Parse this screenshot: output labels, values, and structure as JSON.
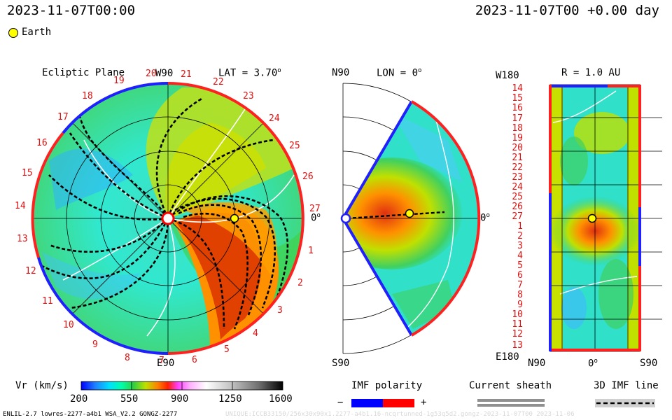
{
  "header": {
    "datetime_left": "2023-11-07T00:00",
    "datetime_right": "2023-11-07T00 +0.00 day"
  },
  "legend": {
    "earth_label": "Earth",
    "earth_color": "#ffff00"
  },
  "ecliptic_panel": {
    "title": "Ecliptic Plane",
    "lat_label": "LAT = 3.70",
    "lat_degree_mark": "o",
    "top_label": "W90",
    "bottom_label": "E90",
    "right_label": "0",
    "right_degree_mark": "o",
    "rotation_numbers": [
      "1",
      "2",
      "3",
      "4",
      "5",
      "6",
      "7",
      "8",
      "9",
      "10",
      "11",
      "12",
      "13",
      "14",
      "15",
      "16",
      "17",
      "18",
      "19",
      "20",
      "21",
      "22",
      "23",
      "24",
      "25",
      "26",
      "27"
    ]
  },
  "meridional_panel": {
    "top_left": "N90",
    "lon_label": "LON = 0",
    "lon_degree_mark": "o",
    "bottom_left": "S90",
    "right_label": "0",
    "right_degree_mark": "o"
  },
  "radial_panel": {
    "title": "R = 1.0 AU",
    "top_left": "W180",
    "bottom_left": "E180",
    "x_labels": [
      "N90",
      "0",
      "S90"
    ],
    "x_degree_mark": "o",
    "y_numbers": [
      "14",
      "15",
      "16",
      "17",
      "18",
      "19",
      "20",
      "21",
      "22",
      "23",
      "24",
      "25",
      "26",
      "27",
      "1",
      "2",
      "3",
      "4",
      "5",
      "6",
      "7",
      "8",
      "9",
      "10",
      "11",
      "12",
      "13"
    ]
  },
  "colorbar": {
    "label": "Vr (km/s)",
    "ticks": [
      "200",
      "550",
      "900",
      "1250",
      "1600"
    ],
    "colors": [
      "#0000ff",
      "#2080ff",
      "#00e0ff",
      "#00ffaa",
      "#30d040",
      "#c0e000",
      "#ff8000",
      "#ff2000",
      "#ff40ff",
      "#ffb0ff",
      "#ffffff",
      "#c0c0c0",
      "#808080",
      "#404040",
      "#000000"
    ]
  },
  "imf_legend": {
    "title": "IMF polarity",
    "minus": "−",
    "plus": "+",
    "neg_color": "#0000ff",
    "pos_color": "#ff0000"
  },
  "sheath_legend": {
    "title": "Current sheath"
  },
  "imf_line_legend": {
    "title": "3D IMF line"
  },
  "footer": {
    "left": "ENLIL-2.7 lowres-2277-a4b1 WSA_V2.2 GONGZ-2277",
    "right": "UNIQUE:ICCB33150/256x30x90x1.2277-a4b1.16-ncqrtunned-1g53q5d2.gongz-2023-11-07T00   2023-11-06"
  }
}
